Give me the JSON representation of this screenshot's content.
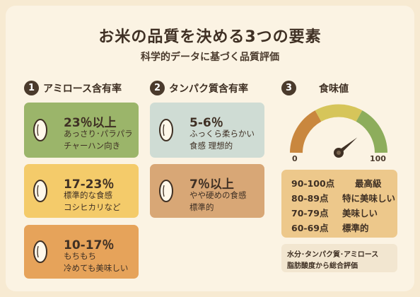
{
  "title": "お米の品質を決める3つの要素",
  "subtitle": "科学的データに基づく品質評価",
  "sections": [
    {
      "number": "1",
      "heading": "アミロース含有率",
      "items": [
        {
          "main": "23％以上",
          "line1": "あっさり･パラパラ",
          "line2": "チャーハン向き",
          "color": "#9bb56a"
        },
        {
          "main": "17-23％",
          "line1": "標準的な食感",
          "line2": "コシヒカリなど",
          "color": "#f4cb6a"
        },
        {
          "main": "10-17％",
          "line1": "もちもち",
          "line2": "冷めても美味しい",
          "color": "#e6a35a"
        }
      ]
    },
    {
      "number": "2",
      "heading": "タンパク質含有率",
      "items": [
        {
          "main": "5-6％",
          "line1": "ふっくら柔らかい",
          "line2": "食感 理想的",
          "color": "#cfdcd4"
        },
        {
          "main": "7％以上",
          "line1": "やや硬めの食感",
          "line2": "標準的",
          "color": "#d8a776"
        }
      ]
    },
    {
      "number": "3",
      "heading": "食味値",
      "gauge": {
        "min": "0",
        "max": "100",
        "value": 78
      },
      "ratings": [
        {
          "range": "90-100点",
          "label": "最高級"
        },
        {
          "range": "80-89点",
          "label": "特に美味しい"
        },
        {
          "range": "70-79点",
          "label": "美味しい"
        },
        {
          "range": "60-69点",
          "label": "標準的"
        }
      ],
      "note_line1": "水分･タンパク質･アミロース",
      "note_line2": "脂肪酸度から総合評価"
    }
  ],
  "icons": {
    "grain": "rice-grain-icon",
    "needle": "gauge-needle-icon"
  }
}
